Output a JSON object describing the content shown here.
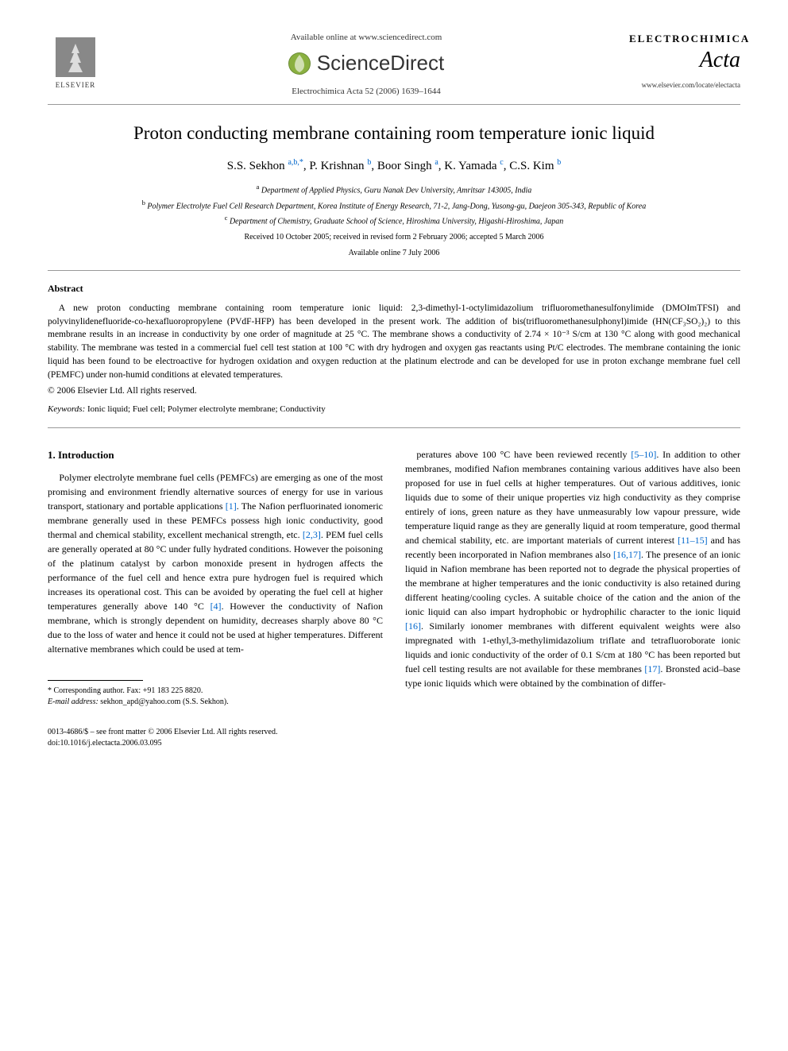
{
  "header": {
    "available_online": "Available online at www.sciencedirect.com",
    "sciencedirect": "ScienceDirect",
    "journal_ref": "Electrochimica Acta 52 (2006) 1639–1644",
    "publisher": "ELSEVIER",
    "journal_line1": "ELECTROCHIMICA",
    "journal_line2": "Acta",
    "journal_url": "www.elsevier.com/locate/electacta"
  },
  "title": "Proton conducting membrane containing room temperature ionic liquid",
  "authors_html": "S.S. Sekhon <sup>a,b,*</sup>, P. Krishnan <sup>b</sup>, Boor Singh <sup>a</sup>, K. Yamada <sup>c</sup>, C.S. Kim <sup>b</sup>",
  "affiliations": {
    "a": "Department of Applied Physics, Guru Nanak Dev University, Amritsar 143005, India",
    "b": "Polymer Electrolyte Fuel Cell Research Department, Korea Institute of Energy Research, 71-2, Jang-Dong, Yusong-gu, Daejeon 305-343, Republic of Korea",
    "c": "Department of Chemistry, Graduate School of Science, Hiroshima University, Higashi-Hiroshima, Japan"
  },
  "dates": {
    "received": "Received 10 October 2005; received in revised form 2 February 2006; accepted 5 March 2006",
    "online": "Available online 7 July 2006"
  },
  "abstract": {
    "heading": "Abstract",
    "text": "A new proton conducting membrane containing room temperature ionic liquid: 2,3-dimethyl-1-octylimidazolium trifluoromethanesulfonylimide (DMOImTFSI) and polyvinylidenefluoride-co-hexafluoropropylene (PVdF-HFP) has been developed in the present work. The addition of bis(trifluoromethanesulphonyl)imide (HN(CF₃SO₂)₂) to this membrane results in an increase in conductivity by one order of magnitude at 25 °C. The membrane shows a conductivity of 2.74 × 10⁻³ S/cm at 130 °C along with good mechanical stability. The membrane was tested in a commercial fuel cell test station at 100 °C with dry hydrogen and oxygen gas reactants using Pt/C electrodes. The membrane containing the ionic liquid has been found to be electroactive for hydrogen oxidation and oxygen reduction at the platinum electrode and can be developed for use in proton exchange membrane fuel cell (PEMFC) under non-humid conditions at elevated temperatures.",
    "copyright": "© 2006 Elsevier Ltd. All rights reserved."
  },
  "keywords": {
    "label": "Keywords:",
    "text": "Ionic liquid; Fuel cell; Polymer electrolyte membrane; Conductivity"
  },
  "intro": {
    "heading": "1. Introduction",
    "left": "Polymer electrolyte membrane fuel cells (PEMFCs) are emerging as one of the most promising and environment friendly alternative sources of energy for use in various transport, stationary and portable applications [1]. The Nafion perfluorinated ionomeric membrane generally used in these PEMFCs possess high ionic conductivity, good thermal and chemical stability, excellent mechanical strength, etc. [2,3]. PEM fuel cells are generally operated at 80 °C under fully hydrated conditions. However the poisoning of the platinum catalyst by carbon monoxide present in hydrogen affects the performance of the fuel cell and hence extra pure hydrogen fuel is required which increases its operational cost. This can be avoided by operating the fuel cell at higher temperatures generally above 140 °C [4]. However the conductivity of Nafion membrane, which is strongly dependent on humidity, decreases sharply above 80 °C due to the loss of water and hence it could not be used at higher temperatures. Different alternative membranes which could be used at tem-",
    "right": "peratures above 100 °C have been reviewed recently [5–10]. In addition to other membranes, modified Nafion membranes containing various additives have also been proposed for use in fuel cells at higher temperatures. Out of various additives, ionic liquids due to some of their unique properties viz high conductivity as they comprise entirely of ions, green nature as they have unmeasurably low vapour pressure, wide temperature liquid range as they are generally liquid at room temperature, good thermal and chemical stability, etc. are important materials of current interest [11–15] and has recently been incorporated in Nafion membranes also [16,17]. The presence of an ionic liquid in Nafion membrane has been reported not to degrade the physical properties of the membrane at higher temperatures and the ionic conductivity is also retained during different heating/cooling cycles. A suitable choice of the cation and the anion of the ionic liquid can also impart hydrophobic or hydrophilic character to the ionic liquid [16]. Similarly ionomer membranes with different equivalent weights were also impregnated with 1-ethyl,3-methylimidazolium triflate and tetrafluoroborate ionic liquids and ionic conductivity of the order of 0.1 S/cm at 180 °C has been reported but fuel cell testing results are not available for these membranes [17]. Bronsted acid–base type ionic liquids which were obtained by the combination of differ-"
  },
  "footnote": {
    "corresponding": "* Corresponding author. Fax: +91 183 225 8820.",
    "email_label": "E-mail address:",
    "email": "sekhon_apd@yahoo.com",
    "email_who": "(S.S. Sekhon)."
  },
  "bottom": {
    "issn": "0013-4686/$ – see front matter © 2006 Elsevier Ltd. All rights reserved.",
    "doi": "doi:10.1016/j.electacta.2006.03.095"
  },
  "cites": {
    "c1": "[1]",
    "c23": "[2,3]",
    "c4": "[4]",
    "c510": "[5–10]",
    "c1115": "[11–15]",
    "c1617": "[16,17]",
    "c16": "[16]",
    "c17": "[17]"
  },
  "colors": {
    "link": "#0066cc",
    "text": "#000000",
    "divider": "#999999"
  }
}
